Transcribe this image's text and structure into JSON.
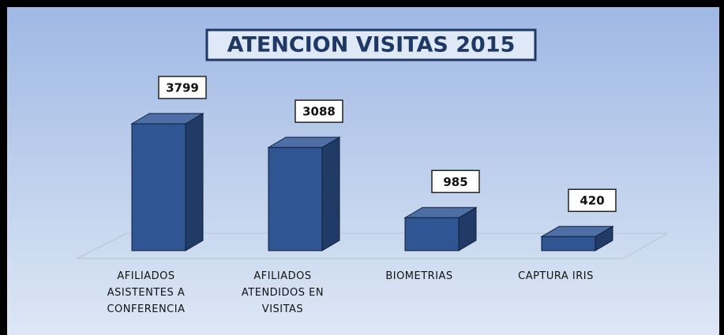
{
  "chart_data": {
    "type": "bar3d",
    "title": "ATENCION VISITAS 2015",
    "categories": [
      "AFILIADOS ASISTENTES A CONFERENCIA",
      "AFILIADOS ATENDIDOS EN VISITAS",
      "BIOMETRIAS",
      "CAPTURA IRIS"
    ],
    "values": [
      3799,
      3088,
      985,
      420
    ],
    "color": "#2f5592"
  }
}
